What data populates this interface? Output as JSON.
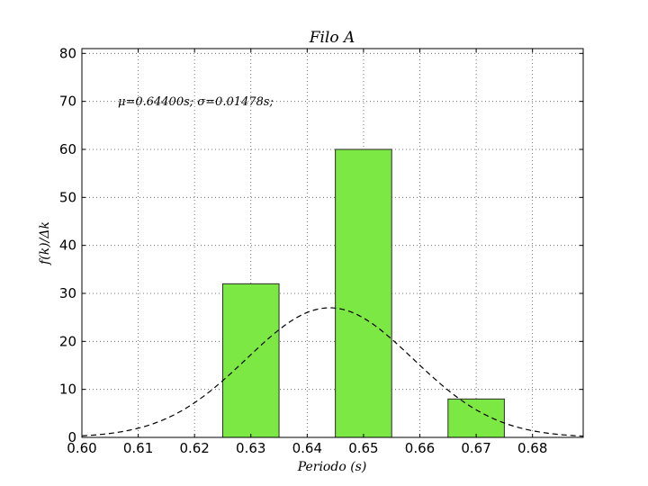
{
  "chart_data": {
    "type": "bar",
    "title": "Filo A",
    "xlabel": "Periodo (s)",
    "ylabel": "f(k)/Δk",
    "annotation": "μ=0.64400s; σ=0.01478s;",
    "xlim": [
      0.6,
      0.689
    ],
    "ylim": [
      0,
      81
    ],
    "xticks": [
      0.6,
      0.61,
      0.62,
      0.63,
      0.64,
      0.65,
      0.66,
      0.67,
      0.68
    ],
    "xtick_labels": [
      "0.60",
      "0.61",
      "0.62",
      "0.63",
      "0.64",
      "0.65",
      "0.66",
      "0.67",
      "0.68"
    ],
    "yticks": [
      0,
      10,
      20,
      30,
      40,
      50,
      60,
      70,
      80
    ],
    "yticks_labels": [
      "0",
      "10",
      "20",
      "30",
      "40",
      "50",
      "60",
      "70",
      "80"
    ],
    "grid": true,
    "bars": [
      {
        "x_start": 0.625,
        "x_end": 0.635,
        "value": 32
      },
      {
        "x_start": 0.645,
        "x_end": 0.655,
        "value": 60
      },
      {
        "x_start": 0.665,
        "x_end": 0.675,
        "value": 8
      }
    ],
    "curve": {
      "type": "gaussian",
      "style": "dashed",
      "color": "#000000",
      "mu": 0.644,
      "sigma": 0.01478,
      "peak": 27
    },
    "bar_color": "#7ce843",
    "bar_edge_color": "#2a2a2a"
  }
}
